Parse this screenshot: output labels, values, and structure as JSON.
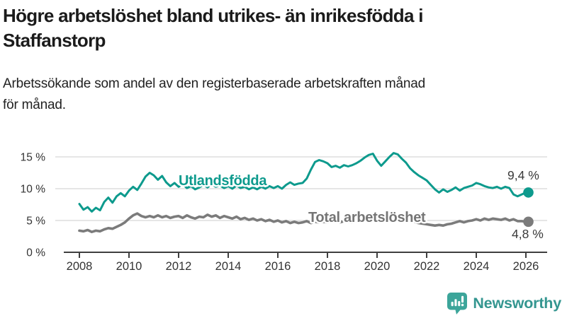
{
  "header": {
    "title_lines": [
      "Högre arbetslöshet bland utrikes- än inrikesfödda i",
      "Staffanstorp"
    ],
    "subtitle_lines": [
      "Arbetssökande som andel av den registerbaserade arbetskraften månad",
      "för månad."
    ]
  },
  "chart_data": {
    "type": "line",
    "title": "Högre arbetslöshet bland utrikes- än inrikesfödda i Staffanstorp",
    "subtitle": "Arbetssökande som andel av den registerbaserade arbetskraften månad för månad.",
    "xlabel": "",
    "ylabel": "",
    "unit": "%",
    "x_start": 2008.0,
    "x_step_years": 0.166667,
    "x_end": 2026.0,
    "ylim": [
      0,
      16.5
    ],
    "grid": "horizontal",
    "legend_position": "inline-labels-on-lines",
    "ytick_values": [
      0,
      5,
      10,
      15
    ],
    "ytick_labels": [
      "0 %",
      "5 %",
      "10 %",
      "15 %"
    ],
    "xtick_values": [
      2008,
      2010,
      2012,
      2014,
      2016,
      2018,
      2020,
      2022,
      2024,
      2026
    ],
    "xtick_labels": [
      "2008",
      "2010",
      "2012",
      "2014",
      "2016",
      "2018",
      "2020",
      "2022",
      "2024",
      "2026"
    ],
    "series": [
      {
        "name": "Utlandsfödda",
        "color": "#0d9a8d",
        "label_color": "#0d9a8d",
        "end_value": 9.4,
        "end_value_label": "9,4 %",
        "values": [
          7.6,
          6.7,
          7.1,
          6.4,
          7.0,
          6.6,
          7.9,
          8.6,
          7.8,
          8.8,
          9.3,
          8.8,
          9.7,
          10.3,
          9.8,
          10.8,
          11.9,
          12.5,
          12.1,
          11.4,
          12.0,
          11.0,
          10.4,
          10.9,
          10.3,
          10.7,
          10.1,
          10.4,
          9.9,
          10.2,
          10.6,
          10.2,
          10.7,
          10.3,
          10.5,
          10.1,
          10.4,
          10.0,
          10.5,
          10.1,
          10.3,
          9.9,
          10.2,
          9.9,
          10.3,
          10.0,
          10.4,
          10.1,
          10.4,
          10.0,
          10.6,
          11.0,
          10.6,
          10.8,
          10.9,
          11.6,
          13.0,
          14.2,
          14.5,
          14.3,
          14.0,
          13.4,
          13.6,
          13.3,
          13.7,
          13.5,
          13.7,
          14.0,
          14.4,
          14.9,
          15.3,
          15.5,
          14.4,
          13.6,
          14.3,
          15.0,
          15.6,
          15.4,
          14.7,
          14.1,
          13.2,
          12.6,
          12.1,
          11.7,
          11.3,
          10.6,
          9.9,
          9.4,
          9.9,
          9.5,
          9.8,
          10.2,
          9.7,
          10.1,
          10.3,
          10.5,
          10.9,
          10.7,
          10.4,
          10.2,
          10.1,
          10.3,
          10.0,
          10.3,
          10.1,
          9.1,
          8.8,
          9.1,
          9.4
        ]
      },
      {
        "name": "Total arbetslöshet",
        "color": "#7b7b7b",
        "label_color": "#757575",
        "end_value": 4.8,
        "end_value_label": "4,8 %",
        "values": [
          3.4,
          3.3,
          3.5,
          3.2,
          3.4,
          3.3,
          3.6,
          3.8,
          3.7,
          4.0,
          4.3,
          4.7,
          5.3,
          5.8,
          6.1,
          5.7,
          5.5,
          5.7,
          5.5,
          5.8,
          5.5,
          5.7,
          5.4,
          5.6,
          5.7,
          5.4,
          5.8,
          5.5,
          5.3,
          5.6,
          5.5,
          5.9,
          5.6,
          5.8,
          5.4,
          5.7,
          5.5,
          5.3,
          5.6,
          5.2,
          5.4,
          5.1,
          5.3,
          5.0,
          5.2,
          4.9,
          5.1,
          4.8,
          5.0,
          4.7,
          4.9,
          4.6,
          4.8,
          4.6,
          4.7,
          4.9,
          4.6,
          4.8,
          4.7,
          4.8,
          4.7,
          4.9,
          4.8,
          4.7,
          4.9,
          4.8,
          4.7,
          4.9,
          4.8,
          5.0,
          4.9,
          5.0,
          5.2,
          5.6,
          6.0,
          5.9,
          5.7,
          5.5,
          5.3,
          5.2,
          5.0,
          4.8,
          4.6,
          4.5,
          4.4,
          4.3,
          4.2,
          4.3,
          4.2,
          4.4,
          4.5,
          4.7,
          4.9,
          4.7,
          4.9,
          5.0,
          5.2,
          5.0,
          5.3,
          5.1,
          5.3,
          5.2,
          5.1,
          5.3,
          5.0,
          5.2,
          4.9,
          4.9,
          4.8
        ]
      }
    ],
    "axis_color": "#3f3f3f",
    "gridline_color": "#d8d8d8",
    "tick_label_color": "#333333",
    "value_label_color": "#3a3a3a"
  },
  "footer": {
    "logo_text": "Newsworthy",
    "logo_color": "#349690",
    "logo_icon_color": "#3ca59a",
    "logo_icon": "bar-chart-speech-bubble"
  }
}
